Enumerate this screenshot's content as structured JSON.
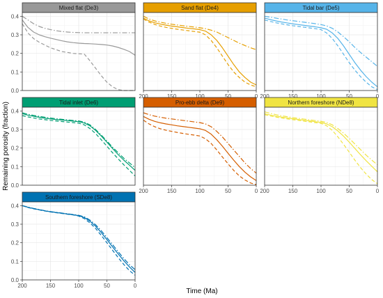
{
  "figure": {
    "xlabel": "Time (Ma)",
    "ylabel": "Remaining porosity (fraction)"
  },
  "axes": {
    "x_ticks": [
      200,
      150,
      100,
      50,
      0
    ],
    "y_ticks": [
      0.0,
      0.1,
      0.2,
      0.3,
      0.4
    ],
    "y_tick_labels": [
      "0.0",
      "0.1",
      "0.2",
      "0.3",
      "0.4"
    ],
    "xlim": [
      200,
      0
    ],
    "ylim": [
      0.0,
      0.42
    ],
    "x_reversed": true,
    "grid": true
  },
  "chart_data": [
    {
      "type": "line",
      "title": "Mixed flat (De3)",
      "color": "#999999",
      "strip_color": "#999999",
      "series": [
        {
          "style": "dashdot",
          "x": [
            200,
            190,
            180,
            170,
            160,
            150,
            140,
            130,
            120,
            110,
            100,
            90,
            80,
            70,
            60,
            50,
            40,
            30,
            20,
            10,
            0
          ],
          "values": [
            0.4,
            0.38,
            0.36,
            0.345,
            0.335,
            0.328,
            0.322,
            0.318,
            0.315,
            0.313,
            0.312,
            0.311,
            0.311,
            0.311,
            0.311,
            0.311,
            0.311,
            0.311,
            0.311,
            0.311,
            0.311
          ]
        },
        {
          "style": "solid",
          "x": [
            200,
            190,
            180,
            170,
            160,
            150,
            140,
            130,
            120,
            110,
            100,
            90,
            80,
            70,
            60,
            50,
            40,
            30,
            20,
            10,
            0
          ],
          "values": [
            0.38,
            0.34,
            0.315,
            0.3,
            0.29,
            0.282,
            0.275,
            0.268,
            0.262,
            0.258,
            0.255,
            0.253,
            0.252,
            0.25,
            0.248,
            0.245,
            0.24,
            0.232,
            0.222,
            0.21,
            0.19
          ]
        },
        {
          "style": "dashed",
          "x": [
            200,
            190,
            180,
            170,
            160,
            150,
            140,
            130,
            120,
            110,
            100,
            90,
            80,
            70,
            60,
            50,
            40,
            30,
            20,
            10,
            0
          ],
          "values": [
            0.36,
            0.31,
            0.28,
            0.26,
            0.245,
            0.23,
            0.22,
            0.21,
            0.205,
            0.2,
            0.198,
            0.196,
            0.16,
            0.12,
            0.08,
            0.045,
            0.02,
            0.005,
            0.0,
            0.0,
            0.0
          ]
        }
      ]
    },
    {
      "type": "line",
      "title": "Sand flat (De4)",
      "color": "#E69F00",
      "strip_color": "#E69F00",
      "series": [
        {
          "style": "dashdot",
          "x": [
            200,
            190,
            180,
            170,
            160,
            150,
            140,
            130,
            120,
            110,
            100,
            90,
            80,
            70,
            60,
            50,
            40,
            30,
            20,
            10,
            0
          ],
          "values": [
            0.4,
            0.385,
            0.375,
            0.368,
            0.362,
            0.357,
            0.353,
            0.349,
            0.345,
            0.342,
            0.338,
            0.333,
            0.325,
            0.315,
            0.3,
            0.285,
            0.27,
            0.255,
            0.242,
            0.23,
            0.22
          ]
        },
        {
          "style": "solid",
          "x": [
            200,
            190,
            180,
            170,
            160,
            150,
            140,
            130,
            120,
            110,
            100,
            90,
            80,
            70,
            60,
            50,
            40,
            30,
            20,
            10,
            0
          ],
          "values": [
            0.39,
            0.375,
            0.365,
            0.358,
            0.352,
            0.347,
            0.343,
            0.339,
            0.335,
            0.332,
            0.328,
            0.32,
            0.3,
            0.27,
            0.23,
            0.185,
            0.14,
            0.1,
            0.07,
            0.045,
            0.03
          ]
        },
        {
          "style": "dashed",
          "x": [
            200,
            190,
            180,
            170,
            160,
            150,
            140,
            130,
            120,
            110,
            100,
            90,
            80,
            70,
            60,
            50,
            40,
            30,
            20,
            10,
            0
          ],
          "values": [
            0.385,
            0.368,
            0.356,
            0.347,
            0.34,
            0.335,
            0.33,
            0.326,
            0.322,
            0.318,
            0.314,
            0.3,
            0.27,
            0.23,
            0.185,
            0.14,
            0.1,
            0.07,
            0.045,
            0.03,
            0.02
          ]
        }
      ]
    },
    {
      "type": "line",
      "title": "Tidal bar (De5)",
      "color": "#56B4E9",
      "strip_color": "#56B4E9",
      "series": [
        {
          "style": "dashdot",
          "x": [
            200,
            190,
            180,
            170,
            160,
            150,
            140,
            130,
            120,
            110,
            100,
            90,
            80,
            70,
            60,
            50,
            40,
            30,
            20,
            10,
            0
          ],
          "values": [
            0.4,
            0.395,
            0.39,
            0.385,
            0.38,
            0.376,
            0.372,
            0.368,
            0.364,
            0.36,
            0.355,
            0.348,
            0.335,
            0.315,
            0.29,
            0.262,
            0.232,
            0.205,
            0.18,
            0.155,
            0.13
          ]
        },
        {
          "style": "solid",
          "x": [
            200,
            190,
            180,
            170,
            160,
            150,
            140,
            130,
            120,
            110,
            100,
            90,
            80,
            70,
            60,
            50,
            40,
            30,
            20,
            10,
            0
          ],
          "values": [
            0.39,
            0.382,
            0.375,
            0.369,
            0.364,
            0.359,
            0.355,
            0.351,
            0.347,
            0.343,
            0.338,
            0.33,
            0.31,
            0.28,
            0.24,
            0.195,
            0.15,
            0.11,
            0.075,
            0.045,
            0.02
          ]
        },
        {
          "style": "dashed",
          "x": [
            200,
            190,
            180,
            170,
            160,
            150,
            140,
            130,
            120,
            110,
            100,
            90,
            80,
            70,
            60,
            50,
            40,
            30,
            20,
            10,
            0
          ],
          "values": [
            0.38,
            0.372,
            0.365,
            0.359,
            0.354,
            0.349,
            0.345,
            0.341,
            0.337,
            0.333,
            0.328,
            0.31,
            0.28,
            0.24,
            0.195,
            0.15,
            0.11,
            0.075,
            0.045,
            0.02,
            0.005
          ]
        }
      ]
    },
    {
      "type": "line",
      "title": "Tidal inlet (De6)",
      "color": "#009E73",
      "strip_color": "#009E73",
      "series": [
        {
          "style": "dashdot",
          "x": [
            200,
            190,
            180,
            170,
            160,
            150,
            140,
            130,
            120,
            110,
            100,
            90,
            80,
            70,
            60,
            50,
            40,
            30,
            20,
            10,
            0
          ],
          "values": [
            0.39,
            0.382,
            0.376,
            0.371,
            0.366,
            0.362,
            0.358,
            0.355,
            0.352,
            0.349,
            0.346,
            0.34,
            0.325,
            0.3,
            0.27,
            0.238,
            0.205,
            0.175,
            0.145,
            0.12,
            0.095
          ]
        },
        {
          "style": "solid",
          "x": [
            200,
            190,
            180,
            170,
            160,
            150,
            140,
            130,
            120,
            110,
            100,
            90,
            80,
            70,
            60,
            50,
            40,
            30,
            20,
            10,
            0
          ],
          "values": [
            0.385,
            0.377,
            0.371,
            0.366,
            0.361,
            0.357,
            0.354,
            0.351,
            0.348,
            0.345,
            0.342,
            0.335,
            0.32,
            0.295,
            0.265,
            0.232,
            0.198,
            0.165,
            0.135,
            0.108,
            0.08
          ]
        },
        {
          "style": "dashed",
          "x": [
            200,
            190,
            180,
            170,
            160,
            150,
            140,
            130,
            120,
            110,
            100,
            90,
            80,
            70,
            60,
            50,
            40,
            30,
            20,
            10,
            0
          ],
          "values": [
            0.375,
            0.368,
            0.362,
            0.357,
            0.353,
            0.349,
            0.346,
            0.343,
            0.34,
            0.337,
            0.334,
            0.325,
            0.305,
            0.278,
            0.245,
            0.21,
            0.175,
            0.142,
            0.11,
            0.08,
            0.05
          ]
        }
      ]
    },
    {
      "type": "line",
      "title": "Pro-ebb delta (De9)",
      "color": "#D55E00",
      "strip_color": "#D55E00",
      "series": [
        {
          "style": "dashdot",
          "x": [
            200,
            190,
            180,
            170,
            160,
            150,
            140,
            130,
            120,
            110,
            100,
            90,
            80,
            70,
            60,
            50,
            40,
            30,
            20,
            10,
            0
          ],
          "values": [
            0.39,
            0.38,
            0.372,
            0.366,
            0.361,
            0.357,
            0.353,
            0.349,
            0.345,
            0.341,
            0.337,
            0.33,
            0.315,
            0.29,
            0.26,
            0.225,
            0.19,
            0.155,
            0.12,
            0.09,
            0.065
          ]
        },
        {
          "style": "solid",
          "x": [
            200,
            190,
            180,
            170,
            160,
            150,
            140,
            130,
            120,
            110,
            100,
            90,
            80,
            70,
            60,
            50,
            40,
            30,
            20,
            10,
            0
          ],
          "values": [
            0.37,
            0.355,
            0.344,
            0.336,
            0.33,
            0.325,
            0.32,
            0.316,
            0.312,
            0.308,
            0.304,
            0.295,
            0.275,
            0.245,
            0.21,
            0.172,
            0.135,
            0.1,
            0.07,
            0.045,
            0.025
          ]
        },
        {
          "style": "dashed",
          "x": [
            200,
            190,
            180,
            170,
            160,
            150,
            140,
            130,
            120,
            110,
            100,
            90,
            80,
            70,
            60,
            50,
            40,
            30,
            20,
            10,
            0
          ],
          "values": [
            0.35,
            0.33,
            0.315,
            0.304,
            0.296,
            0.29,
            0.284,
            0.279,
            0.274,
            0.27,
            0.265,
            0.25,
            0.225,
            0.19,
            0.152,
            0.115,
            0.08,
            0.05,
            0.028,
            0.012,
            0.003
          ]
        }
      ]
    },
    {
      "type": "line",
      "title": "Northern foreshore (NDe8)",
      "color": "#F0E442",
      "strip_color": "#F0E442",
      "series": [
        {
          "style": "dashdot",
          "x": [
            200,
            190,
            180,
            170,
            160,
            150,
            140,
            130,
            120,
            110,
            100,
            90,
            80,
            70,
            60,
            50,
            40,
            30,
            20,
            10,
            0
          ],
          "values": [
            0.395,
            0.387,
            0.38,
            0.374,
            0.369,
            0.364,
            0.36,
            0.356,
            0.352,
            0.348,
            0.344,
            0.338,
            0.325,
            0.305,
            0.28,
            0.252,
            0.222,
            0.192,
            0.162,
            0.135,
            0.11
          ]
        },
        {
          "style": "solid",
          "x": [
            200,
            190,
            180,
            170,
            160,
            150,
            140,
            130,
            120,
            110,
            100,
            90,
            80,
            70,
            60,
            50,
            40,
            30,
            20,
            10,
            0
          ],
          "values": [
            0.385,
            0.378,
            0.372,
            0.367,
            0.362,
            0.358,
            0.354,
            0.35,
            0.346,
            0.342,
            0.338,
            0.33,
            0.315,
            0.292,
            0.264,
            0.232,
            0.198,
            0.164,
            0.132,
            0.102,
            0.072
          ]
        },
        {
          "style": "dashed",
          "x": [
            200,
            190,
            180,
            170,
            160,
            150,
            140,
            130,
            120,
            110,
            100,
            90,
            80,
            70,
            60,
            50,
            40,
            30,
            20,
            10,
            0
          ],
          "values": [
            0.38,
            0.373,
            0.367,
            0.362,
            0.357,
            0.353,
            0.349,
            0.345,
            0.341,
            0.337,
            0.333,
            0.32,
            0.295,
            0.26,
            0.22,
            0.178,
            0.135,
            0.095,
            0.06,
            0.03,
            0.008
          ]
        }
      ]
    },
    {
      "type": "line",
      "title": "Southern foreshore (SDe8)",
      "color": "#0072B2",
      "strip_color": "#0072B2",
      "series": [
        {
          "style": "dashdot",
          "x": [
            200,
            190,
            180,
            170,
            160,
            150,
            140,
            130,
            120,
            110,
            100,
            90,
            80,
            70,
            60,
            50,
            40,
            30,
            20,
            10,
            0
          ],
          "values": [
            0.4,
            0.392,
            0.385,
            0.379,
            0.373,
            0.368,
            0.364,
            0.36,
            0.356,
            0.352,
            0.348,
            0.34,
            0.322,
            0.297,
            0.265,
            0.228,
            0.19,
            0.152,
            0.115,
            0.082,
            0.055
          ]
        },
        {
          "style": "solid",
          "x": [
            200,
            190,
            180,
            170,
            160,
            150,
            140,
            130,
            120,
            110,
            100,
            90,
            80,
            70,
            60,
            50,
            40,
            30,
            20,
            10,
            0
          ],
          "values": [
            0.4,
            0.391,
            0.384,
            0.378,
            0.372,
            0.367,
            0.363,
            0.359,
            0.355,
            0.351,
            0.346,
            0.336,
            0.316,
            0.289,
            0.255,
            0.217,
            0.178,
            0.14,
            0.103,
            0.07,
            0.04
          ]
        },
        {
          "style": "dashed",
          "x": [
            200,
            190,
            180,
            170,
            160,
            150,
            140,
            130,
            120,
            110,
            100,
            90,
            80,
            70,
            60,
            50,
            40,
            30,
            20,
            10,
            0
          ],
          "values": [
            0.4,
            0.39,
            0.383,
            0.377,
            0.371,
            0.366,
            0.362,
            0.358,
            0.354,
            0.35,
            0.344,
            0.33,
            0.307,
            0.277,
            0.24,
            0.2,
            0.16,
            0.12,
            0.083,
            0.05,
            0.025
          ]
        }
      ]
    }
  ]
}
